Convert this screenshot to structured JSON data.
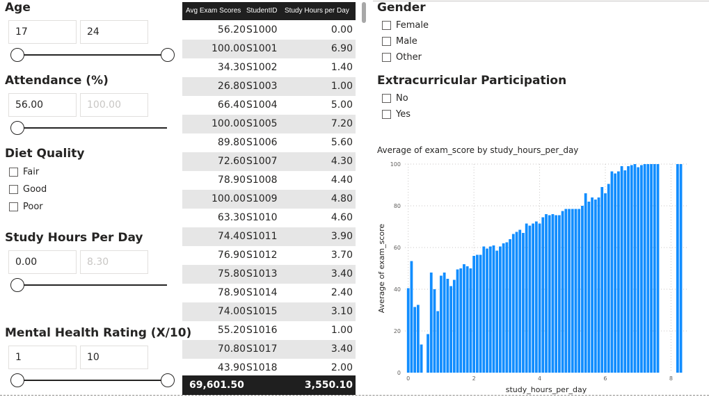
{
  "slicers": {
    "age": {
      "title": "Age",
      "min": "17",
      "max": "24"
    },
    "attendance": {
      "title": "Attendance (%)",
      "min": "56.00",
      "max": "100.00"
    },
    "diet": {
      "title": "Diet Quality",
      "options": [
        "Fair",
        "Good",
        "Poor"
      ]
    },
    "study_hours": {
      "title": "Study Hours Per Day",
      "min": "0.00",
      "max": "8.30"
    },
    "mental_health": {
      "title": "Mental Health Rating (X/10)",
      "min": "1",
      "max": "10"
    },
    "gender": {
      "title": "Gender",
      "options": [
        "Female",
        "Male",
        "Other"
      ]
    },
    "extracurricular": {
      "title": "Extracurricular Participation",
      "options": [
        "No",
        "Yes"
      ]
    }
  },
  "table": {
    "headers": [
      "Avg Exam Scores",
      "StudentID",
      "Study Hours per Day"
    ],
    "rows": [
      [
        "56.20",
        "S1000",
        "0.00"
      ],
      [
        "100.00",
        "S1001",
        "6.90"
      ],
      [
        "34.30",
        "S1002",
        "1.40"
      ],
      [
        "26.80",
        "S1003",
        "1.00"
      ],
      [
        "66.40",
        "S1004",
        "5.00"
      ],
      [
        "100.00",
        "S1005",
        "7.20"
      ],
      [
        "89.80",
        "S1006",
        "5.60"
      ],
      [
        "72.60",
        "S1007",
        "4.30"
      ],
      [
        "78.90",
        "S1008",
        "4.40"
      ],
      [
        "100.00",
        "S1009",
        "4.80"
      ],
      [
        "63.30",
        "S1010",
        "4.60"
      ],
      [
        "74.40",
        "S1011",
        "3.90"
      ],
      [
        "76.90",
        "S1012",
        "3.70"
      ],
      [
        "75.80",
        "S1013",
        "3.40"
      ],
      [
        "78.90",
        "S1014",
        "2.40"
      ],
      [
        "74.00",
        "S1015",
        "3.10"
      ],
      [
        "55.20",
        "S1016",
        "1.00"
      ],
      [
        "70.80",
        "S1017",
        "3.40"
      ],
      [
        "43.90",
        "S1018",
        "2.00"
      ]
    ],
    "totals": {
      "score": "69,601.50",
      "hours": "3,550.10"
    }
  },
  "chart_data": {
    "type": "bar",
    "title": "Average of exam_score by study_hours_per_day",
    "xlabel": "study_hours_per_day",
    "ylabel": "Average of exam_score",
    "xlim": [
      -0.1,
      8.5
    ],
    "ylim": [
      0,
      100
    ],
    "xticks": [
      "0",
      "2",
      "4",
      "6",
      "8"
    ],
    "yticks": [
      "0",
      "20",
      "40",
      "60",
      "80",
      "100"
    ],
    "bar_color": "#118dff",
    "grid": true,
    "x": [
      0.0,
      0.1,
      0.2,
      0.3,
      0.4,
      0.5,
      0.6,
      0.7,
      0.8,
      0.9,
      1.0,
      1.1,
      1.2,
      1.3,
      1.4,
      1.5,
      1.6,
      1.7,
      1.8,
      1.9,
      2.0,
      2.1,
      2.2,
      2.3,
      2.4,
      2.5,
      2.6,
      2.7,
      2.8,
      2.9,
      3.0,
      3.1,
      3.2,
      3.3,
      3.4,
      3.5,
      3.6,
      3.7,
      3.8,
      3.9,
      4.0,
      4.1,
      4.2,
      4.3,
      4.4,
      4.5,
      4.6,
      4.7,
      4.8,
      4.9,
      5.0,
      5.1,
      5.2,
      5.3,
      5.4,
      5.5,
      5.6,
      5.7,
      5.8,
      5.9,
      6.0,
      6.1,
      6.2,
      6.3,
      6.4,
      6.5,
      6.6,
      6.7,
      6.8,
      6.9,
      7.0,
      7.1,
      7.2,
      7.3,
      7.4,
      7.5,
      7.6,
      8.2,
      8.3
    ],
    "values": [
      40.5,
      53.5,
      31.5,
      32.5,
      13.5,
      0,
      18.5,
      48,
      40,
      29.5,
      46.5,
      48,
      45,
      41.5,
      44.5,
      49.5,
      50,
      52,
      51,
      50,
      56,
      56.5,
      56.5,
      60.5,
      59.5,
      60.5,
      61,
      58.5,
      60.5,
      62,
      62.5,
      64,
      66.5,
      67.5,
      68.5,
      67,
      71.5,
      70.5,
      71.5,
      72.5,
      71.5,
      74.5,
      76,
      75.5,
      76,
      75.5,
      75.5,
      77.5,
      78.5,
      78.5,
      78.5,
      78.5,
      78.5,
      80,
      86,
      82,
      84,
      83,
      84,
      89,
      86,
      90.5,
      96.5,
      95.5,
      96.5,
      99,
      97,
      99,
      99.5,
      100,
      98.5,
      99.5,
      100,
      100,
      100,
      100,
      100,
      100,
      100
    ]
  }
}
